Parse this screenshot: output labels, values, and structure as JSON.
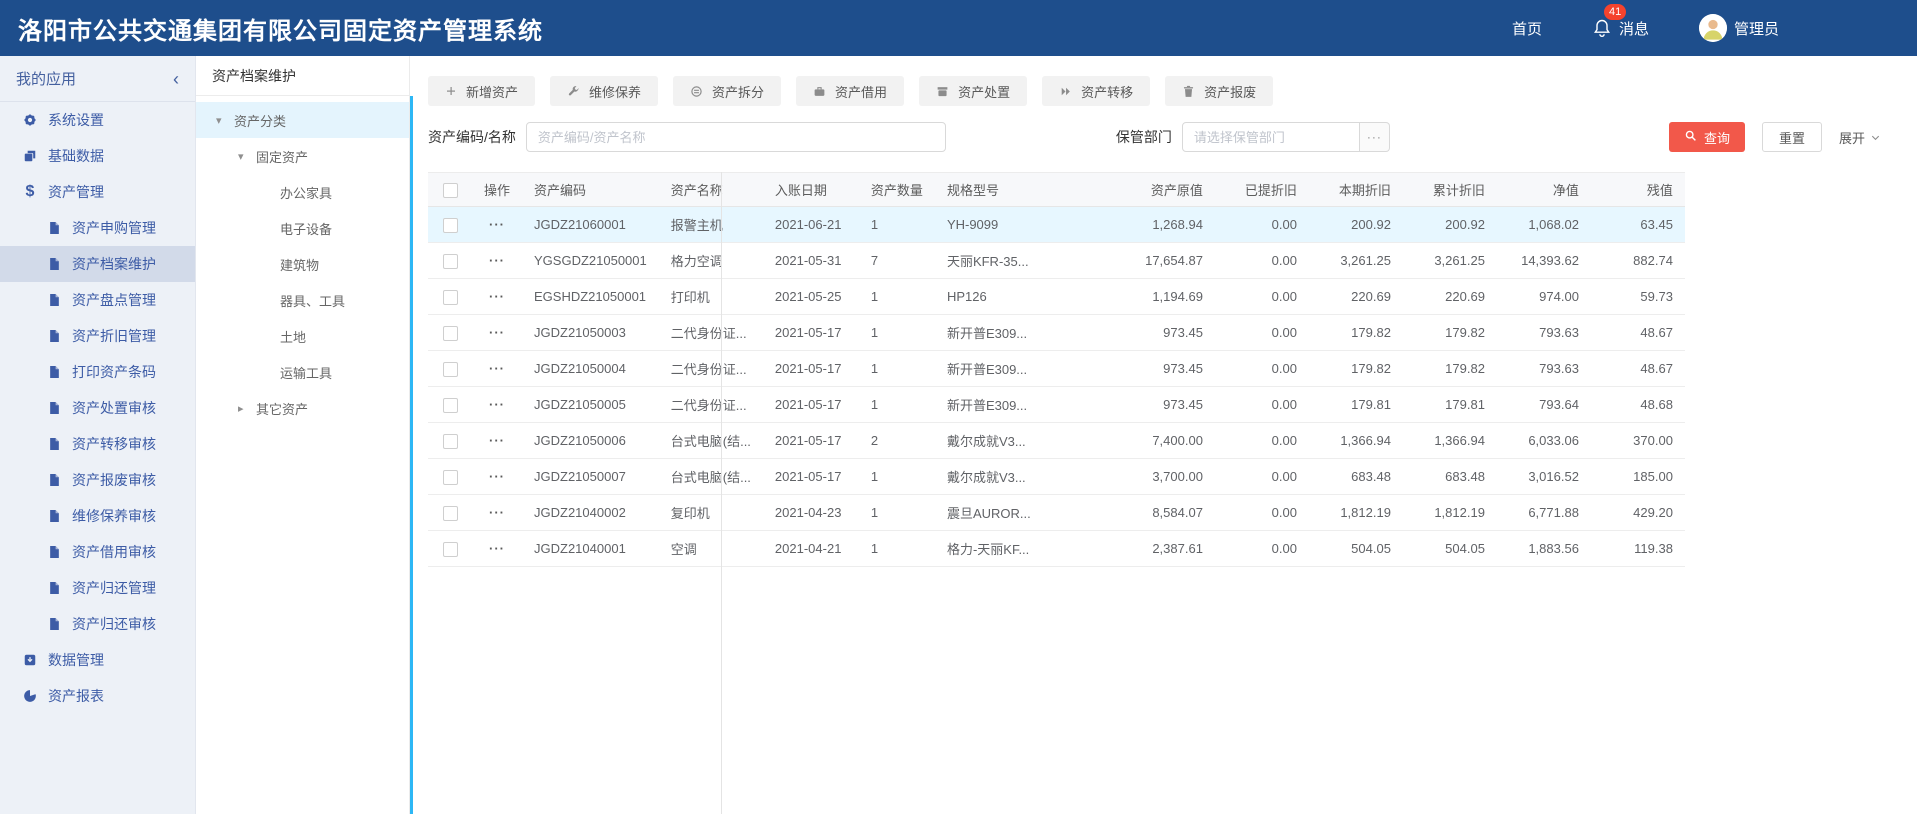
{
  "colors": {
    "header_bg": "#1e4e8c",
    "badge_red": "#f5432d",
    "query_red": "#f2584a",
    "splitter_blue": "#2db7f5",
    "row_highlight": "#e7f7ff",
    "sidebar_bg": "#edf1f7"
  },
  "header": {
    "title": "洛阳市公共交通集团有限公司固定资产管理系统",
    "nav": {
      "home": "首页",
      "messages": "消息",
      "badge": "41",
      "user": "管理员"
    }
  },
  "sidebar": {
    "title": "我的应用",
    "collapse_glyph": "‹",
    "items": [
      {
        "label": "系统设置",
        "icon": "gear",
        "level": 1
      },
      {
        "label": "基础数据",
        "icon": "layers",
        "level": 1
      },
      {
        "label": "资产管理",
        "icon": "dollar",
        "level": 1
      },
      {
        "label": "资产申购管理",
        "icon": "doc",
        "level": 2
      },
      {
        "label": "资产档案维护",
        "icon": "doc",
        "level": 2,
        "selected": true
      },
      {
        "label": "资产盘点管理",
        "icon": "doc",
        "level": 2
      },
      {
        "label": "资产折旧管理",
        "icon": "doc",
        "level": 2
      },
      {
        "label": "打印资产条码",
        "icon": "doc",
        "level": 2
      },
      {
        "label": "资产处置审核",
        "icon": "doc",
        "level": 2
      },
      {
        "label": "资产转移审核",
        "icon": "doc",
        "level": 2
      },
      {
        "label": "资产报废审核",
        "icon": "doc",
        "level": 2
      },
      {
        "label": "维修保养审核",
        "icon": "doc",
        "level": 2
      },
      {
        "label": "资产借用审核",
        "icon": "doc",
        "level": 2
      },
      {
        "label": "资产归还管理",
        "icon": "doc",
        "level": 2
      },
      {
        "label": "资产归还审核",
        "icon": "doc",
        "level": 2
      },
      {
        "label": "数据管理",
        "icon": "data",
        "level": 1
      },
      {
        "label": "资产报表",
        "icon": "pie",
        "level": 1
      }
    ]
  },
  "tree_panel": {
    "title": "资产档案维护",
    "nodes": [
      {
        "label": "资产分类",
        "level": 1,
        "caret": "down",
        "selected": true
      },
      {
        "label": "固定资产",
        "level": 2,
        "caret": "down"
      },
      {
        "label": "办公家具",
        "level": 3
      },
      {
        "label": "电子设备",
        "level": 3
      },
      {
        "label": "建筑物",
        "level": 3
      },
      {
        "label": "器具、工具",
        "level": 3
      },
      {
        "label": "土地",
        "level": 3
      },
      {
        "label": "运输工具",
        "level": 3
      },
      {
        "label": "其它资产",
        "level": 2,
        "caret": "right"
      }
    ]
  },
  "toolbar": {
    "buttons": [
      {
        "label": "新增资产",
        "icon": "plus"
      },
      {
        "label": "维修保养",
        "icon": "wrench"
      },
      {
        "label": "资产拆分",
        "icon": "split"
      },
      {
        "label": "资产借用",
        "icon": "borrow"
      },
      {
        "label": "资产处置",
        "icon": "dispose"
      },
      {
        "label": "资产转移",
        "icon": "transfer"
      },
      {
        "label": "资产报废",
        "icon": "scrap"
      }
    ]
  },
  "filters": {
    "code_label": "资产编码/名称",
    "code_placeholder": "资产编码/资产名称",
    "dept_label": "保管部门",
    "dept_placeholder": "请选择保管部门",
    "more_label": "···",
    "query_label": "查询",
    "reset_label": "重置",
    "expand_label": "展开"
  },
  "table": {
    "op_label": "···",
    "columns": [
      "操作",
      "资产编码",
      "资产名称",
      "入账日期",
      "资产数量",
      "规格型号",
      "资产原值",
      "已提折旧",
      "本期折旧",
      "累计折旧",
      "净值",
      "残值"
    ],
    "rows": [
      {
        "highlight": true,
        "code": "JGDZ21060001",
        "name": "报警主机",
        "date": "2021-06-21",
        "qty": "1",
        "model": "YH-9099",
        "orig": "1,268.94",
        "dep": "0.00",
        "cur": "200.92",
        "acc": "200.92",
        "net": "1,068.02",
        "res": "63.45"
      },
      {
        "highlight": false,
        "code": "YGSGDZ21050001",
        "name": "格力空调",
        "date": "2021-05-31",
        "qty": "7",
        "model": "天丽KFR-35...",
        "orig": "17,654.87",
        "dep": "0.00",
        "cur": "3,261.25",
        "acc": "3,261.25",
        "net": "14,393.62",
        "res": "882.74"
      },
      {
        "highlight": false,
        "code": "EGSHDZ21050001",
        "name": "打印机",
        "date": "2021-05-25",
        "qty": "1",
        "model": "HP126",
        "orig": "1,194.69",
        "dep": "0.00",
        "cur": "220.69",
        "acc": "220.69",
        "net": "974.00",
        "res": "59.73"
      },
      {
        "highlight": false,
        "code": "JGDZ21050003",
        "name": "二代身份证...",
        "date": "2021-05-17",
        "qty": "1",
        "model": "新开普E309...",
        "orig": "973.45",
        "dep": "0.00",
        "cur": "179.82",
        "acc": "179.82",
        "net": "793.63",
        "res": "48.67"
      },
      {
        "highlight": false,
        "code": "JGDZ21050004",
        "name": "二代身份证...",
        "date": "2021-05-17",
        "qty": "1",
        "model": "新开普E309...",
        "orig": "973.45",
        "dep": "0.00",
        "cur": "179.82",
        "acc": "179.82",
        "net": "793.63",
        "res": "48.67"
      },
      {
        "highlight": false,
        "code": "JGDZ21050005",
        "name": "二代身份证...",
        "date": "2021-05-17",
        "qty": "1",
        "model": "新开普E309...",
        "orig": "973.45",
        "dep": "0.00",
        "cur": "179.81",
        "acc": "179.81",
        "net": "793.64",
        "res": "48.68"
      },
      {
        "highlight": false,
        "code": "JGDZ21050006",
        "name": "台式电脑(结...",
        "date": "2021-05-17",
        "qty": "2",
        "model": "戴尔成就V3...",
        "orig": "7,400.00",
        "dep": "0.00",
        "cur": "1,366.94",
        "acc": "1,366.94",
        "net": "6,033.06",
        "res": "370.00"
      },
      {
        "highlight": false,
        "code": "JGDZ21050007",
        "name": "台式电脑(结...",
        "date": "2021-05-17",
        "qty": "1",
        "model": "戴尔成就V3...",
        "orig": "3,700.00",
        "dep": "0.00",
        "cur": "683.48",
        "acc": "683.48",
        "net": "3,016.52",
        "res": "185.00"
      },
      {
        "highlight": false,
        "code": "JGDZ21040002",
        "name": "复印机",
        "date": "2021-04-23",
        "qty": "1",
        "model": "震旦AUROR...",
        "orig": "8,584.07",
        "dep": "0.00",
        "cur": "1,812.19",
        "acc": "1,812.19",
        "net": "6,771.88",
        "res": "429.20"
      },
      {
        "highlight": false,
        "code": "JGDZ21040001",
        "name": "空调",
        "date": "2021-04-21",
        "qty": "1",
        "model": "格力-天丽KF...",
        "orig": "2,387.61",
        "dep": "0.00",
        "cur": "504.05",
        "acc": "504.05",
        "net": "1,883.56",
        "res": "119.38"
      }
    ]
  }
}
